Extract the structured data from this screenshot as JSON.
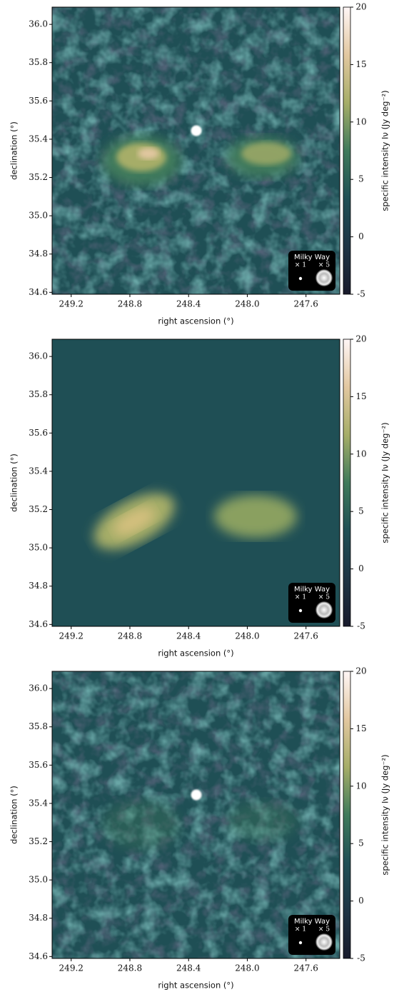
{
  "chart_data": [
    {
      "type": "image",
      "xlabel": "right ascension (°)",
      "ylabel": "declination (°)",
      "xlim": [
        249.33,
        247.37
      ],
      "xticks": [
        249.2,
        248.8,
        248.4,
        {
          "value": 248,
          "label": "248.0"
        },
        247.6
      ],
      "ylim": [
        34.59,
        36.09
      ],
      "yticks": [
        34.6,
        34.8,
        {
          "value": 35,
          "label": "35.0"
        },
        35.2,
        35.4,
        35.6,
        35.8,
        {
          "value": 36,
          "label": "36.0"
        }
      ],
      "colorbar": {
        "label": "specific intensity Iν (Jy deg⁻²)",
        "lim": [
          -5,
          20
        ],
        "ticks": [
          -5,
          0,
          5,
          10,
          15,
          20
        ],
        "colormap": [
          "#181a2b",
          "#1e3444",
          "#1f4f55",
          "#3f7a5b",
          "#a6ad68",
          "#e2c7a0",
          "#fff6f6"
        ]
      },
      "inset": {
        "title": "Milky Way",
        "labels": [
          "× 1",
          "× 5"
        ]
      }
    },
    {
      "type": "image",
      "xlabel": "right ascension (°)",
      "ylabel": "declination (°)",
      "xlim": [
        249.33,
        247.37
      ],
      "xticks": [
        249.2,
        248.8,
        248.4,
        {
          "value": 248,
          "label": "248.0"
        },
        247.6
      ],
      "ylim": [
        34.59,
        36.09
      ],
      "yticks": [
        34.6,
        34.8,
        {
          "value": 35,
          "label": "35.0"
        },
        35.2,
        35.4,
        35.6,
        35.8,
        {
          "value": 36,
          "label": "36.0"
        }
      ],
      "colorbar": {
        "label": "specific intensity Iν (Jy deg⁻²)",
        "lim": [
          -5,
          20
        ],
        "ticks": [
          -5,
          0,
          5,
          10,
          15,
          20
        ],
        "colormap": [
          "#181a2b",
          "#1e3444",
          "#1f4f55",
          "#3f7a5b",
          "#a6ad68",
          "#e2c7a0",
          "#fff6f6"
        ]
      },
      "inset": {
        "title": "Milky Way",
        "labels": [
          "× 1",
          "× 5"
        ]
      }
    },
    {
      "type": "image",
      "xlabel": "right ascension (°)",
      "ylabel": "declination (°)",
      "xlim": [
        249.33,
        247.37
      ],
      "xticks": [
        249.2,
        248.8,
        248.4,
        {
          "value": 248,
          "label": "248.0"
        },
        247.6
      ],
      "ylim": [
        34.59,
        36.09
      ],
      "yticks": [
        34.6,
        34.8,
        {
          "value": 35,
          "label": "35.0"
        },
        35.2,
        35.4,
        35.6,
        35.8,
        {
          "value": 36,
          "label": "36.0"
        }
      ],
      "colorbar": {
        "label": "specific intensity Iν (Jy deg⁻²)",
        "lim": [
          -5,
          20
        ],
        "ticks": [
          -5,
          0,
          5,
          10,
          15,
          20
        ],
        "colormap": [
          "#181a2b",
          "#1e3444",
          "#1f4f55",
          "#3f7a5b",
          "#a6ad68",
          "#e2c7a0",
          "#fff6f6"
        ]
      },
      "inset": {
        "title": "Milky Way",
        "labels": [
          "× 1",
          "× 5"
        ]
      }
    }
  ]
}
